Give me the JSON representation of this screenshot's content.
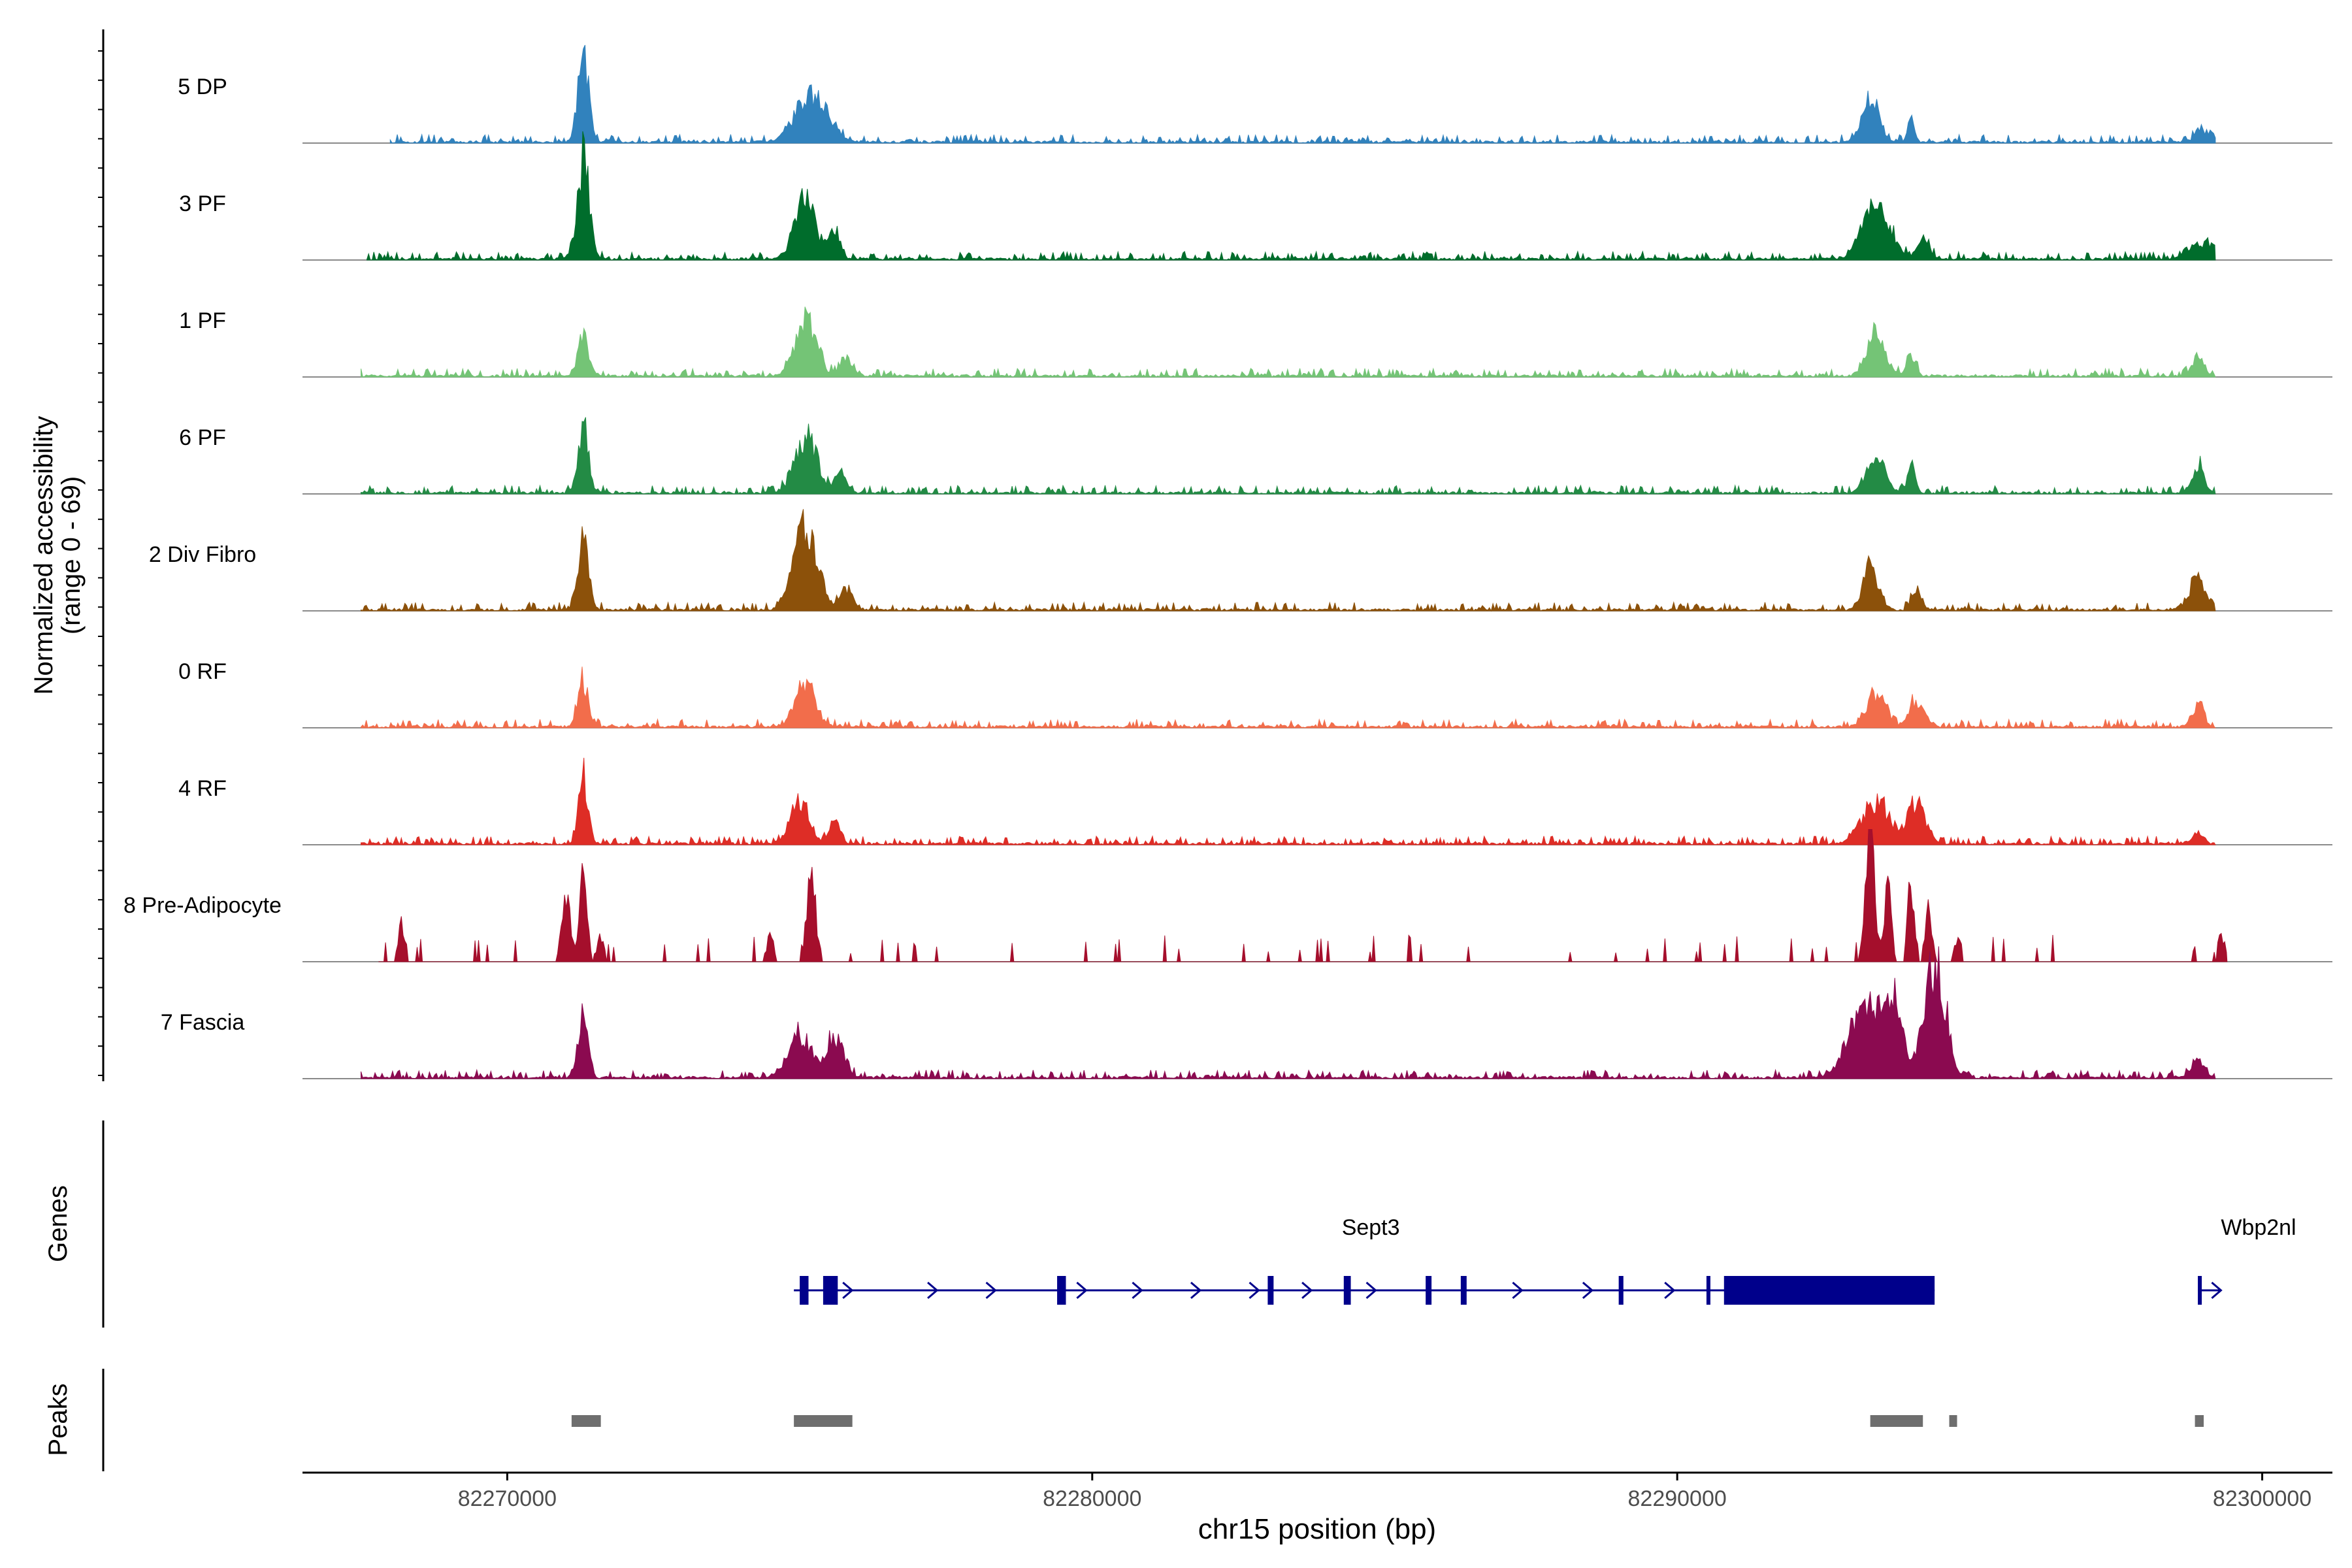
{
  "chart_data": {
    "type": "coverage-track",
    "ylabel_line1": "Normalized accessibility",
    "ylabel_line2": "(range 0 - 69)",
    "y_range": [
      0,
      69
    ],
    "xlabel": "chr15 position (bp)",
    "x_range": [
      82266500,
      82301200
    ],
    "x_ticks": [
      82270000,
      82280000,
      82290000,
      82300000
    ],
    "x_tick_labels": [
      "82270000",
      "82280000",
      "82290000",
      "82300000"
    ],
    "tracks": [
      {
        "name": "5 DP",
        "color": "#3182bd",
        "start": 82268000,
        "end": 82299200,
        "peaks": [
          [
            82271300,
            44,
            90
          ],
          [
            82275200,
            26,
            260
          ],
          [
            82293300,
            24,
            130
          ],
          [
            82294000,
            12,
            60
          ],
          [
            82299000,
            5,
            150
          ]
        ]
      },
      {
        "name": "3 PF",
        "color": "#006d2c",
        "start": 82267600,
        "end": 82299200,
        "peaks": [
          [
            82271300,
            52,
            100
          ],
          [
            82275100,
            30,
            180
          ],
          [
            82275600,
            14,
            90
          ],
          [
            82293400,
            30,
            220
          ],
          [
            82294200,
            8,
            120
          ],
          [
            82299000,
            8,
            200
          ]
        ]
      },
      {
        "name": "1 PF",
        "color": "#74c476",
        "start": 82267500,
        "end": 82299200,
        "peaks": [
          [
            82271300,
            20,
            90
          ],
          [
            82275100,
            28,
            180
          ],
          [
            82275800,
            10,
            100
          ],
          [
            82293400,
            24,
            150
          ],
          [
            82294000,
            10,
            80
          ],
          [
            82298900,
            10,
            100
          ]
        ]
      },
      {
        "name": "6 PF",
        "color": "#238b45",
        "start": 82267500,
        "end": 82299200,
        "peaks": [
          [
            82271300,
            34,
            90
          ],
          [
            82275100,
            30,
            180
          ],
          [
            82275700,
            12,
            100
          ],
          [
            82293400,
            20,
            150
          ],
          [
            82294000,
            12,
            70
          ],
          [
            82298900,
            14,
            100
          ]
        ]
      },
      {
        "name": "2 Div Fibro",
        "color": "#8c510a",
        "start": 82267500,
        "end": 82299200,
        "peaks": [
          [
            82271300,
            34,
            90
          ],
          [
            82275100,
            44,
            200
          ],
          [
            82275800,
            10,
            110
          ],
          [
            82293300,
            26,
            120
          ],
          [
            82294100,
            12,
            80
          ],
          [
            82298900,
            16,
            150
          ]
        ]
      },
      {
        "name": "0 RF",
        "color": "#f26d4b",
        "start": 82267500,
        "end": 82299200,
        "peaks": [
          [
            82271300,
            22,
            90
          ],
          [
            82275100,
            20,
            180
          ],
          [
            82293400,
            18,
            150
          ],
          [
            82294100,
            14,
            120
          ],
          [
            82298900,
            12,
            100
          ]
        ]
      },
      {
        "name": "4 RF",
        "color": "#de2d26",
        "start": 82267500,
        "end": 82299200,
        "peaks": [
          [
            82271300,
            34,
            80
          ],
          [
            82275000,
            24,
            150
          ],
          [
            82275600,
            10,
            100
          ],
          [
            82293400,
            22,
            230
          ],
          [
            82294100,
            22,
            150
          ],
          [
            82298900,
            5,
            100
          ]
        ]
      },
      {
        "name": "8 Pre-Adipocyte",
        "color": "#a50f2c",
        "start": 82267800,
        "end": 82299400,
        "peaks": [
          [
            82268200,
            20,
            60
          ],
          [
            82271000,
            36,
            70
          ],
          [
            82271300,
            42,
            70
          ],
          [
            82271600,
            14,
            60
          ],
          [
            82274500,
            14,
            60
          ],
          [
            82275200,
            42,
            80
          ],
          [
            82293300,
            62,
            80
          ],
          [
            82293600,
            40,
            60
          ],
          [
            82294000,
            40,
            60
          ],
          [
            82294300,
            28,
            60
          ],
          [
            82294800,
            12,
            60
          ],
          [
            82299300,
            14,
            60
          ]
        ],
        "sparse": true
      },
      {
        "name": "7 Fascia",
        "color": "#8b0a50",
        "start": 82267500,
        "end": 82299200,
        "peaks": [
          [
            82271300,
            36,
            80
          ],
          [
            82275000,
            22,
            200
          ],
          [
            82275600,
            20,
            150
          ],
          [
            82293200,
            40,
            260
          ],
          [
            82293700,
            34,
            150
          ],
          [
            82294400,
            60,
            180
          ],
          [
            82298900,
            10,
            100
          ]
        ]
      }
    ],
    "genes_label": "Genes",
    "genes": [
      {
        "name": "Sept3",
        "start": 82274900,
        "end": 82294400,
        "strand": "+",
        "exons": [
          [
            82275000,
            82275150
          ],
          [
            82275400,
            82275650
          ],
          [
            82279400,
            82279550
          ],
          [
            82283000,
            82283100
          ],
          [
            82284300,
            82284420
          ],
          [
            82285700,
            82285800
          ],
          [
            82286300,
            82286400
          ],
          [
            82289000,
            82289080
          ],
          [
            82290500,
            82290530
          ],
          [
            82290800,
            82294400
          ]
        ],
        "arrows": [
          82275850,
          82277300,
          82278300,
          82279850,
          82280800,
          82281800,
          82282800,
          82283700,
          82284800,
          82287300,
          82288500,
          82289900
        ]
      },
      {
        "name": "Wbp2nl",
        "start": 82298900,
        "end": 82299300,
        "strand": "+",
        "exons": [
          [
            82298900,
            82298960
          ]
        ],
        "arrows": [
          82299250
        ]
      }
    ],
    "peaks_label": "Peaks",
    "peak_regions": [
      [
        82271100,
        82271600
      ],
      [
        82274900,
        82275900
      ],
      [
        82293300,
        82294200
      ],
      [
        82294650,
        82294750
      ],
      [
        82298850,
        82299000
      ]
    ]
  }
}
